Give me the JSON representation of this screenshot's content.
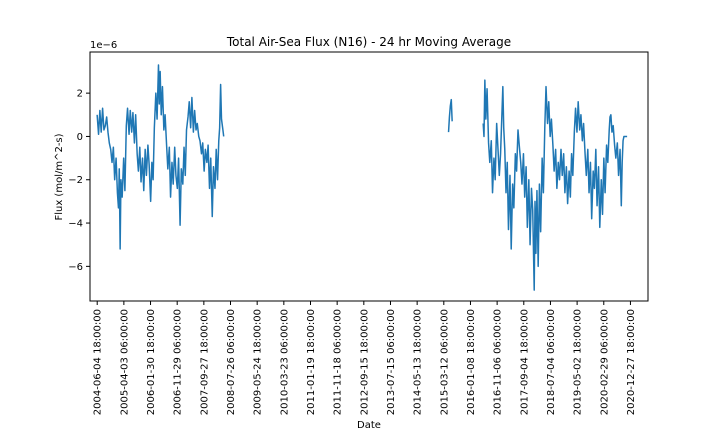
{
  "chart_data": {
    "type": "line",
    "title": "Total Air-Sea Flux (N16) - 24 hr Moving Average",
    "xlabel": "Date",
    "ylabel": "Flux (mol/m^2-s)",
    "y_offset_label": "1e−6",
    "grid": false,
    "legend": "none",
    "xlim": [
      "2004-03-15",
      "2021-07-15"
    ],
    "ylim": [
      -7.6e-06,
      3.9e-06
    ],
    "line_color": "#1f77b4",
    "y_ticks": [
      {
        "value": 2e-06,
        "label": "2"
      },
      {
        "value": 0,
        "label": "0"
      },
      {
        "value": -2e-06,
        "label": "−2"
      },
      {
        "value": -4e-06,
        "label": "−4"
      },
      {
        "value": -6e-06,
        "label": "−6"
      }
    ],
    "x_ticks": [
      {
        "value": "2004-06-04T18:00",
        "label": "2004-06-04 18:00:00"
      },
      {
        "value": "2005-04-03T06:00",
        "label": "2005-04-03 06:00:00"
      },
      {
        "value": "2006-01-30T18:00",
        "label": "2006-01-30 18:00:00"
      },
      {
        "value": "2006-11-29T06:00",
        "label": "2006-11-29 06:00:00"
      },
      {
        "value": "2007-09-27T18:00",
        "label": "2007-09-27 18:00:00"
      },
      {
        "value": "2008-07-26T06:00",
        "label": "2008-07-26 06:00:00"
      },
      {
        "value": "2009-05-24T18:00",
        "label": "2009-05-24 18:00:00"
      },
      {
        "value": "2010-03-23T06:00",
        "label": "2010-03-23 06:00:00"
      },
      {
        "value": "2011-01-19T18:00",
        "label": "2011-01-19 18:00:00"
      },
      {
        "value": "2011-11-18T06:00",
        "label": "2011-11-18 06:00:00"
      },
      {
        "value": "2012-09-15T18:00",
        "label": "2012-09-15 18:00:00"
      },
      {
        "value": "2013-07-15T06:00",
        "label": "2013-07-15 06:00:00"
      },
      {
        "value": "2014-05-13T18:00",
        "label": "2014-05-13 18:00:00"
      },
      {
        "value": "2015-03-12T06:00",
        "label": "2015-03-12 06:00:00"
      },
      {
        "value": "2016-01-08T18:00",
        "label": "2016-01-08 18:00:00"
      },
      {
        "value": "2016-11-06T06:00",
        "label": "2016-11-06 06:00:00"
      },
      {
        "value": "2017-09-04T18:00",
        "label": "2017-09-04 18:00:00"
      },
      {
        "value": "2018-07-04T06:00",
        "label": "2018-07-04 06:00:00"
      },
      {
        "value": "2019-05-02T18:00",
        "label": "2019-05-02 18:00:00"
      },
      {
        "value": "2020-02-29T06:00",
        "label": "2020-02-29 06:00:00"
      },
      {
        "value": "2020-12-27T18:00",
        "label": "2020-12-27 18:00:00"
      }
    ],
    "series": [
      {
        "points": [
          [
            "2004-06-04",
            1e-06
          ],
          [
            "2004-06-20",
            1e-07
          ],
          [
            "2004-07-05",
            1.2e-06
          ],
          [
            "2004-07-20",
            2e-07
          ],
          [
            "2004-08-05",
            1.3e-06
          ],
          [
            "2004-08-20",
            3e-07
          ],
          [
            "2004-09-05",
            5e-07
          ],
          [
            "2004-09-20",
            9e-07
          ],
          [
            "2004-10-05",
            2e-07
          ],
          [
            "2004-10-20",
            -3e-07
          ],
          [
            "2004-11-05",
            -6e-07
          ],
          [
            "2004-11-20",
            -1.2e-06
          ],
          [
            "2004-12-05",
            -5e-07
          ],
          [
            "2004-12-20",
            -2e-06
          ],
          [
            "2005-01-05",
            -1e-06
          ],
          [
            "2005-01-20",
            -2.6e-06
          ],
          [
            "2005-02-01",
            -3.3e-06
          ],
          [
            "2005-02-10",
            -1.5e-06
          ],
          [
            "2005-02-20",
            -5.2e-06
          ],
          [
            "2005-03-01",
            -2e-06
          ],
          [
            "2005-03-15",
            -2.8e-06
          ],
          [
            "2005-04-01",
            -1e-06
          ],
          [
            "2005-04-15",
            -2.5e-06
          ],
          [
            "2005-05-01",
            5e-07
          ],
          [
            "2005-05-15",
            1.3e-06
          ],
          [
            "2005-06-01",
            1e-07
          ],
          [
            "2005-06-15",
            1.2e-06
          ],
          [
            "2005-07-01",
            2e-07
          ],
          [
            "2005-07-15",
            1.1e-06
          ],
          [
            "2005-08-01",
            -3e-07
          ],
          [
            "2005-08-15",
            1e-06
          ],
          [
            "2005-09-01",
            -8e-07
          ],
          [
            "2005-09-15",
            -1.6e-06
          ],
          [
            "2005-10-01",
            -5e-07
          ],
          [
            "2005-10-15",
            -2.1e-06
          ],
          [
            "2005-11-01",
            -1e-06
          ],
          [
            "2005-11-15",
            -2.5e-06
          ],
          [
            "2005-12-01",
            -6e-07
          ],
          [
            "2005-12-15",
            -1.8e-06
          ],
          [
            "2006-01-01",
            -4e-07
          ],
          [
            "2006-01-15",
            -1.3e-06
          ],
          [
            "2006-02-01",
            -3e-06
          ],
          [
            "2006-02-15",
            -1.2e-06
          ],
          [
            "2006-03-01",
            -2e-06
          ],
          [
            "2006-03-15",
            4e-07
          ],
          [
            "2006-04-01",
            2e-06
          ],
          [
            "2006-04-15",
            8e-07
          ],
          [
            "2006-05-01",
            3.3e-06
          ],
          [
            "2006-05-10",
            1.5e-06
          ],
          [
            "2006-05-20",
            3e-06
          ],
          [
            "2006-06-01",
            1e-06
          ],
          [
            "2006-06-15",
            2.3e-06
          ],
          [
            "2006-07-01",
            3e-07
          ],
          [
            "2006-07-15",
            1e-06
          ],
          [
            "2006-08-01",
            -4e-07
          ],
          [
            "2006-08-15",
            -1.5e-06
          ],
          [
            "2006-09-01",
            -5e-07
          ],
          [
            "2006-09-15",
            -2.8e-06
          ],
          [
            "2006-10-01",
            -1.2e-06
          ],
          [
            "2006-10-15",
            -2.2e-06
          ],
          [
            "2006-11-01",
            -5e-07
          ],
          [
            "2006-11-15",
            -1.8e-06
          ],
          [
            "2006-12-01",
            -2.4e-06
          ],
          [
            "2006-12-15",
            -1e-06
          ],
          [
            "2007-01-01",
            -4.1e-06
          ],
          [
            "2007-01-15",
            -1.5e-06
          ],
          [
            "2007-02-01",
            -2.2e-06
          ],
          [
            "2007-02-15",
            -5e-07
          ],
          [
            "2007-03-01",
            -1.8e-06
          ],
          [
            "2007-03-15",
            3e-07
          ],
          [
            "2007-04-01",
            9e-07
          ],
          [
            "2007-04-15",
            1.6e-06
          ],
          [
            "2007-05-01",
            4e-07
          ],
          [
            "2007-05-15",
            1.8e-06
          ],
          [
            "2007-06-01",
            2e-07
          ],
          [
            "2007-06-15",
            1.2e-06
          ],
          [
            "2007-07-01",
            3e-07
          ],
          [
            "2007-07-15",
            6e-07
          ],
          [
            "2007-08-01",
            0.0
          ],
          [
            "2007-08-15",
            -2e-07
          ],
          [
            "2007-09-01",
            -8e-07
          ],
          [
            "2007-09-15",
            -3e-07
          ],
          [
            "2007-10-01",
            -1.6e-06
          ],
          [
            "2007-10-15",
            -6e-07
          ],
          [
            "2007-11-01",
            -1.2e-06
          ],
          [
            "2007-11-15",
            -4e-07
          ],
          [
            "2007-12-01",
            -2.4e-06
          ],
          [
            "2007-12-15",
            -1e-06
          ],
          [
            "2008-01-01",
            -3.7e-06
          ],
          [
            "2008-01-15",
            -1.4e-06
          ],
          [
            "2008-02-01",
            -2.4e-06
          ],
          [
            "2008-02-15",
            -6e-07
          ],
          [
            "2008-03-01",
            -2e-06
          ],
          [
            "2008-03-15",
            -2e-07
          ],
          [
            "2008-03-25",
            4e-07
          ],
          [
            "2008-04-05",
            2.4e-06
          ],
          [
            "2008-04-15",
            8e-07
          ],
          [
            "2008-05-01",
            3e-07
          ],
          [
            "2008-05-10",
            0.0
          ]
        ]
      },
      {
        "points": [
          [
            "2015-05-05",
            2e-07
          ],
          [
            "2015-05-15",
            9e-07
          ],
          [
            "2015-05-25",
            1.4e-06
          ],
          [
            "2015-06-05",
            1.7e-06
          ],
          [
            "2015-06-15",
            7e-07
          ]
        ]
      },
      {
        "points": [
          [
            "2016-06-01",
            6e-07
          ],
          [
            "2016-06-10",
            0.0
          ],
          [
            "2016-06-20",
            2.6e-06
          ],
          [
            "2016-07-01",
            8e-07
          ],
          [
            "2016-07-15",
            2.2e-06
          ],
          [
            "2016-08-01",
            -3e-07
          ],
          [
            "2016-08-15",
            -1.2e-06
          ],
          [
            "2016-09-01",
            -2e-07
          ],
          [
            "2016-09-15",
            -2.6e-06
          ],
          [
            "2016-10-01",
            -1e-06
          ],
          [
            "2016-10-15",
            -2e-06
          ],
          [
            "2016-11-01",
            6e-07
          ],
          [
            "2016-11-15",
            -5e-07
          ],
          [
            "2016-12-01",
            -1.8e-06
          ],
          [
            "2016-12-15",
            -8e-07
          ],
          [
            "2017-01-01",
            1.2e-06
          ],
          [
            "2017-01-10",
            2.3e-06
          ],
          [
            "2017-01-20",
            4e-07
          ],
          [
            "2017-02-01",
            -6e-07
          ],
          [
            "2017-02-15",
            -2.6e-06
          ],
          [
            "2017-03-01",
            -1.2e-06
          ],
          [
            "2017-03-15",
            -4.3e-06
          ],
          [
            "2017-04-01",
            -1.8e-06
          ],
          [
            "2017-04-15",
            -5.2e-06
          ],
          [
            "2017-05-01",
            -2.2e-06
          ],
          [
            "2017-05-15",
            -3.3e-06
          ],
          [
            "2017-06-01",
            -8e-07
          ],
          [
            "2017-06-15",
            -1.6e-06
          ],
          [
            "2017-07-01",
            3e-07
          ],
          [
            "2017-07-15",
            -4e-07
          ],
          [
            "2017-08-01",
            -1.2e-06
          ],
          [
            "2017-08-15",
            -2.2e-06
          ],
          [
            "2017-09-01",
            -8e-07
          ],
          [
            "2017-09-15",
            -2.8e-06
          ],
          [
            "2017-10-01",
            -1.4e-06
          ],
          [
            "2017-10-15",
            -4.2e-06
          ],
          [
            "2017-11-01",
            -2e-06
          ],
          [
            "2017-11-15",
            -5e-06
          ],
          [
            "2017-12-01",
            -2.4e-06
          ],
          [
            "2017-12-15",
            -3.4e-06
          ],
          [
            "2018-01-01",
            -7.1e-06
          ],
          [
            "2018-01-10",
            -3e-06
          ],
          [
            "2018-01-20",
            -5.4e-06
          ],
          [
            "2018-02-01",
            -2.5e-06
          ],
          [
            "2018-02-15",
            -6e-06
          ],
          [
            "2018-03-01",
            -2.2e-06
          ],
          [
            "2018-03-15",
            -4.4e-06
          ],
          [
            "2018-04-01",
            -1e-06
          ],
          [
            "2018-04-15",
            -2.6e-06
          ],
          [
            "2018-05-01",
            4e-07
          ],
          [
            "2018-05-15",
            2.3e-06
          ],
          [
            "2018-06-01",
            6e-07
          ],
          [
            "2018-06-15",
            1.6e-06
          ],
          [
            "2018-07-01",
            0.0
          ],
          [
            "2018-07-15",
            8e-07
          ],
          [
            "2018-08-01",
            -4e-07
          ],
          [
            "2018-08-15",
            -1.6e-06
          ],
          [
            "2018-09-01",
            -6e-07
          ],
          [
            "2018-09-15",
            -2.4e-06
          ],
          [
            "2018-10-01",
            -1.2e-06
          ],
          [
            "2018-10-15",
            -2e-06
          ],
          [
            "2018-11-01",
            -6e-07
          ],
          [
            "2018-11-15",
            -1.8e-06
          ],
          [
            "2018-12-01",
            -8e-07
          ],
          [
            "2018-12-15",
            -2.6e-06
          ],
          [
            "2019-01-01",
            -1.4e-06
          ],
          [
            "2019-01-15",
            -3.1e-06
          ],
          [
            "2019-02-01",
            -1.6e-06
          ],
          [
            "2019-02-15",
            -2.8e-06
          ],
          [
            "2019-03-01",
            -8e-07
          ],
          [
            "2019-03-15",
            -1.8e-06
          ],
          [
            "2019-04-01",
            2e-07
          ],
          [
            "2019-04-15",
            1.3e-06
          ],
          [
            "2019-05-01",
            2e-07
          ],
          [
            "2019-05-15",
            1.6e-06
          ],
          [
            "2019-06-01",
            3e-07
          ],
          [
            "2019-06-15",
            1e-06
          ],
          [
            "2019-07-01",
            -2e-07
          ],
          [
            "2019-07-15",
            6e-07
          ],
          [
            "2019-08-01",
            -8e-07
          ],
          [
            "2019-08-15",
            -1.8e-06
          ],
          [
            "2019-09-01",
            -6e-07
          ],
          [
            "2019-09-15",
            -2.6e-06
          ],
          [
            "2019-10-01",
            -1.2e-06
          ],
          [
            "2019-10-15",
            -3.8e-06
          ],
          [
            "2019-11-01",
            -1.6e-06
          ],
          [
            "2019-11-15",
            -2.4e-06
          ],
          [
            "2019-12-01",
            -6e-07
          ],
          [
            "2019-12-15",
            -3.2e-06
          ],
          [
            "2020-01-01",
            -1.4e-06
          ],
          [
            "2020-01-15",
            -4.2e-06
          ],
          [
            "2020-02-01",
            -2e-06
          ],
          [
            "2020-02-15",
            -3.6e-06
          ],
          [
            "2020-03-01",
            -1e-06
          ],
          [
            "2020-03-15",
            -2.6e-06
          ],
          [
            "2020-04-01",
            -4e-07
          ],
          [
            "2020-04-15",
            -1.2e-06
          ],
          [
            "2020-05-01",
            3e-07
          ],
          [
            "2020-05-10",
            9e-07
          ],
          [
            "2020-05-20",
            1e-06
          ],
          [
            "2020-06-01",
            2e-07
          ],
          [
            "2020-06-15",
            5e-07
          ],
          [
            "2020-07-01",
            -4e-07
          ],
          [
            "2020-07-15",
            -1e-06
          ],
          [
            "2020-08-01",
            -3e-07
          ],
          [
            "2020-08-15",
            -1.8e-06
          ],
          [
            "2020-09-01",
            -6e-07
          ],
          [
            "2020-09-15",
            -3.2e-06
          ],
          [
            "2020-09-25",
            -1.2e-06
          ],
          [
            "2020-10-05",
            -2e-07
          ],
          [
            "2020-10-15",
            0.0
          ],
          [
            "2020-11-01",
            0.0
          ],
          [
            "2020-11-20",
            0.0
          ]
        ]
      }
    ]
  }
}
